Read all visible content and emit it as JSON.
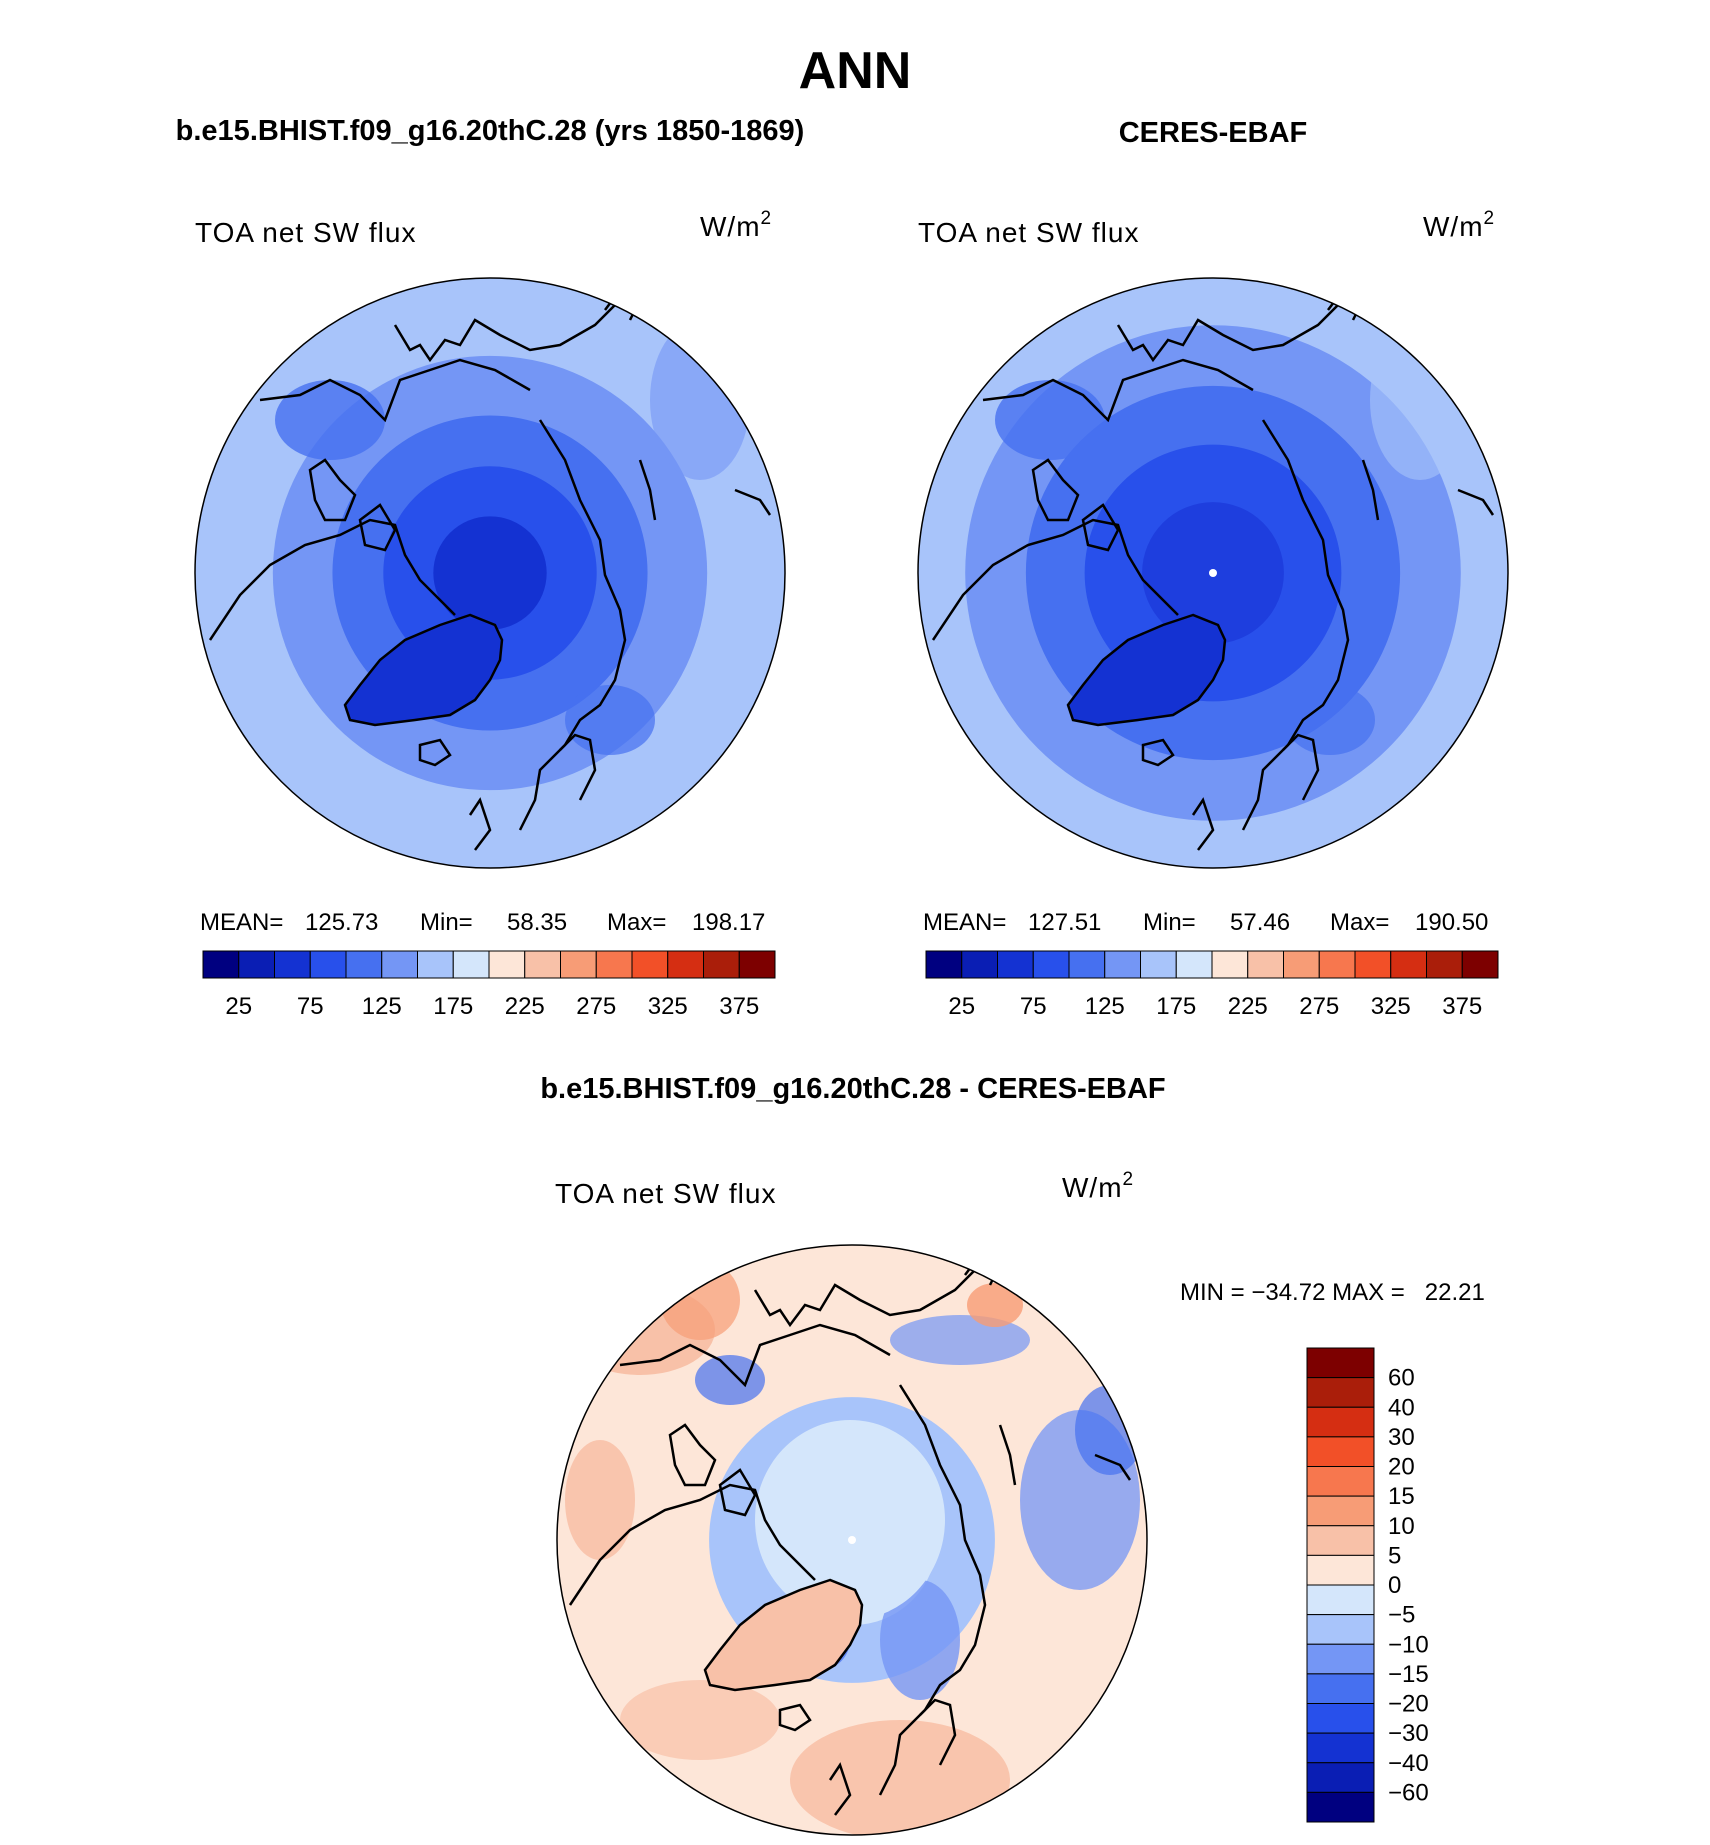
{
  "page_title": "ANN",
  "panels": {
    "model": {
      "title": "b.e15.BHIST.f09_g16.20thC.28 (yrs 1850-1869)",
      "variable": "TOA net SW flux",
      "units": "W/m",
      "units_exp": "2",
      "stats": {
        "mean_label": "MEAN=",
        "mean": "125.73",
        "min_label": "Min=",
        "min": "58.35",
        "max_label": "Max=",
        "max": "198.17"
      }
    },
    "obs": {
      "title": "CERES-EBAF",
      "variable": "TOA net SW flux",
      "units": "W/m",
      "units_exp": "2",
      "stats": {
        "mean_label": "MEAN=",
        "mean": "127.51",
        "min_label": "Min=",
        "min": "57.46",
        "max_label": "Max=",
        "max": "190.50"
      }
    },
    "diff": {
      "title": "b.e15.BHIST.f09_g16.20thC.28 - CERES-EBAF",
      "variable": "TOA net SW flux",
      "units": "W/m",
      "units_exp": "2",
      "stats": {
        "text": "MIN = −34.72 MAX =   22.21"
      }
    }
  },
  "chart_data": [
    {
      "type": "heatmap",
      "projection": "north-polar-stereographic",
      "title": "b.e15.BHIST.f09_g16.20thC.28 (yrs 1850-1869)",
      "variable": "TOA net SW flux",
      "units": "W/m2",
      "stats": {
        "mean": 125.73,
        "min": 58.35,
        "max": 198.17
      },
      "colorbar": {
        "orientation": "horizontal",
        "levels": [
          25,
          50,
          75,
          100,
          125,
          150,
          175,
          200,
          225,
          250,
          275,
          300,
          325,
          350,
          375
        ],
        "tick_labels": [
          "25",
          "75",
          "125",
          "175",
          "225",
          "275",
          "325",
          "375"
        ],
        "colors": [
          "#000080",
          "#0a1eb4",
          "#1432d2",
          "#2850eb",
          "#4670f0",
          "#7496f5",
          "#a8c4fa",
          "#d4e6fb",
          "#fde6d8",
          "#f8c1a8",
          "#f79c76",
          "#f7774e",
          "#f25028",
          "#d52e12",
          "#aa1e0a",
          "#7d0000"
        ]
      },
      "field_zones": [
        {
          "lat_min": 82,
          "color": "#1432d2"
        },
        {
          "lat_min": 75,
          "color": "#2850eb"
        },
        {
          "lat_min": 68,
          "color": "#4670f0"
        },
        {
          "lat_min": 60,
          "color": "#7496f5"
        },
        {
          "lat_min": 50,
          "color": "#a8c4fa"
        }
      ],
      "greenland_color": "#1432d2"
    },
    {
      "type": "heatmap",
      "projection": "north-polar-stereographic",
      "title": "CERES-EBAF",
      "variable": "TOA net SW flux",
      "units": "W/m2",
      "stats": {
        "mean": 127.51,
        "min": 57.46,
        "max": 190.5
      },
      "colorbar": {
        "orientation": "horizontal",
        "levels": [
          25,
          50,
          75,
          100,
          125,
          150,
          175,
          200,
          225,
          250,
          275,
          300,
          325,
          350,
          375
        ],
        "tick_labels": [
          "25",
          "75",
          "125",
          "175",
          "225",
          "275",
          "325",
          "375"
        ],
        "colors": [
          "#000080",
          "#0a1eb4",
          "#1432d2",
          "#2850eb",
          "#4670f0",
          "#7496f5",
          "#a8c4fa",
          "#d4e6fb",
          "#fde6d8",
          "#f8c1a8",
          "#f79c76",
          "#f7774e",
          "#f25028",
          "#d52e12",
          "#aa1e0a",
          "#7d0000"
        ]
      },
      "field_zones": [
        {
          "lat_min": 80,
          "color": "#1e3ede"
        },
        {
          "lat_min": 72,
          "color": "#2850eb"
        },
        {
          "lat_min": 64,
          "color": "#4670f0"
        },
        {
          "lat_min": 56,
          "color": "#7496f5"
        },
        {
          "lat_min": 50,
          "color": "#a8c4fa"
        }
      ],
      "greenland_color": "#1432d2"
    },
    {
      "type": "heatmap",
      "projection": "north-polar-stereographic",
      "title": "b.e15.BHIST.f09_g16.20thC.28 - CERES-EBAF",
      "variable": "TOA net SW flux",
      "units": "W/m2",
      "stats": {
        "min": -34.72,
        "max": 22.21
      },
      "colorbar": {
        "orientation": "vertical",
        "levels": [
          60,
          40,
          30,
          20,
          15,
          10,
          5,
          0,
          -5,
          -10,
          -15,
          -20,
          -30,
          -40,
          -60
        ],
        "tick_labels": [
          "60",
          "40",
          "30",
          "20",
          "15",
          "10",
          "5",
          "0",
          "−5",
          "−10",
          "−15",
          "−20",
          "−30",
          "−40",
          "−60"
        ],
        "colors_top_to_bottom": [
          "#7d0000",
          "#aa1e0a",
          "#d52e12",
          "#f25028",
          "#f7774e",
          "#f79c76",
          "#f8c1a8",
          "#fde6d8",
          "#d4e6fb",
          "#a8c4fa",
          "#7496f5",
          "#4670f0",
          "#2850eb",
          "#1432d2",
          "#0a1eb4",
          "#000080"
        ]
      },
      "field_zones": [
        {
          "lat_min": 78,
          "color": "#d4e6fb"
        },
        {
          "lat_min": 70,
          "color": "#a8c4fa"
        },
        {
          "lat_min": 60,
          "color": "#fde6d8"
        },
        {
          "lat_min": 50,
          "color": "#fde6d8"
        }
      ],
      "greenland_color": "#f8c1a8"
    }
  ]
}
